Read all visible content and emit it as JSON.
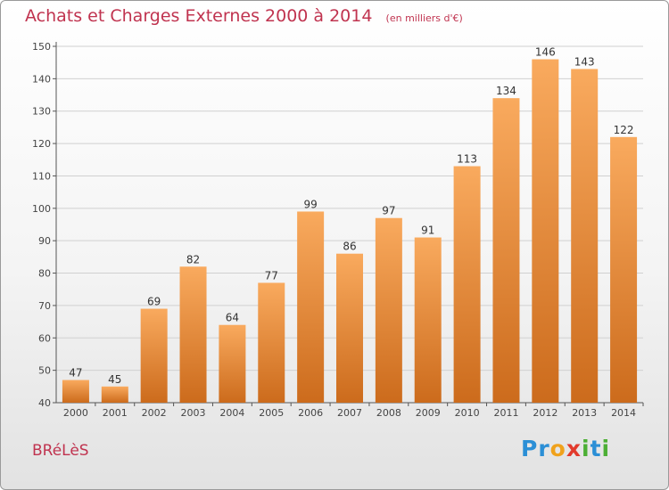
{
  "title": "Achats et Charges Externes 2000 à 2014",
  "unit_note": "(en milliers d'€)",
  "location": "BRéLèS",
  "logo": {
    "text": "Proxiti",
    "letters": [
      "P",
      "r",
      "o",
      "x",
      "i",
      "t",
      "i"
    ],
    "colors": [
      "#2b8fd6",
      "#2b8fd6",
      "#f0a21c",
      "#e23a2c",
      "#4caf35",
      "#2b8fd6",
      "#4caf35"
    ]
  },
  "colors": {
    "accent": "#c0334f",
    "bar_light": "#f9aa5e",
    "bar_dark": "#cc6b1c"
  },
  "chart_data": {
    "type": "bar",
    "categories": [
      "2000",
      "2001",
      "2002",
      "2003",
      "2004",
      "2005",
      "2006",
      "2007",
      "2008",
      "2009",
      "2010",
      "2011",
      "2012",
      "2013",
      "2014"
    ],
    "values": [
      47,
      45,
      69,
      82,
      64,
      77,
      99,
      86,
      97,
      91,
      113,
      134,
      146,
      143,
      122
    ],
    "title": "Achats et Charges Externes 2000 à 2014",
    "xlabel": "",
    "ylabel": "",
    "ylim": [
      40,
      150
    ],
    "yticks": [
      40,
      50,
      60,
      70,
      80,
      90,
      100,
      110,
      120,
      130,
      140,
      150
    ],
    "grid": true,
    "legend": "none"
  }
}
